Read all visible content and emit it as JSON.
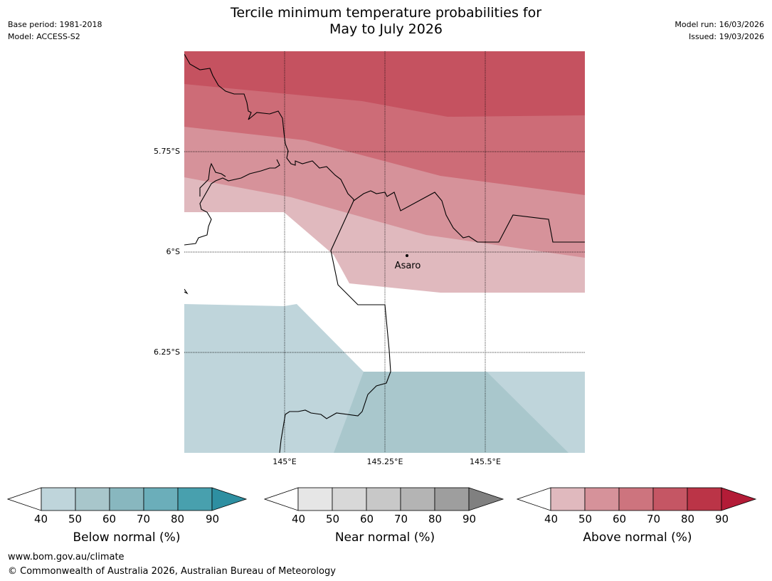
{
  "title": {
    "line1": "Tercile minimum temperature probabilities for",
    "line2": "May to July 2026"
  },
  "meta_left": {
    "base_period": "Base period: 1981-2018",
    "model": "Model: ACCESS-S2"
  },
  "meta_right": {
    "model_run": "Model run: 16/03/2026",
    "issued": "Issued: 19/03/2026"
  },
  "map": {
    "lat_labels": [
      "5.75°S",
      "6°S",
      "6.25°S"
    ],
    "lon_labels": [
      "145°E",
      "145.25°E",
      "145.5°E"
    ],
    "place": "Asaro",
    "colors": {
      "above_40": "#e0b9be",
      "above_50": "#d6929a",
      "above_60": "#cd6c77",
      "above_70": "#c55260",
      "below_40": "#bfd5db",
      "below_50": "#a9c7cc"
    }
  },
  "colorbars": [
    {
      "label": "Below normal (%)",
      "ticks": [
        "40",
        "50",
        "60",
        "70",
        "80",
        "90"
      ],
      "colors": [
        "#bfd5db",
        "#a8c6cb",
        "#88b7bf",
        "#6baeba",
        "#48a0ae",
        "#2e8fa1"
      ]
    },
    {
      "label": "Near normal (%)",
      "ticks": [
        "40",
        "50",
        "60",
        "70",
        "80",
        "90"
      ],
      "colors": [
        "#e6e6e6",
        "#d8d8d8",
        "#c8c8c8",
        "#b4b4b4",
        "#9e9e9e",
        "#808080"
      ]
    },
    {
      "label": "Above normal (%)",
      "ticks": [
        "40",
        "50",
        "60",
        "70",
        "80",
        "90"
      ],
      "colors": [
        "#e0b9be",
        "#d6929a",
        "#cd747e",
        "#c55664",
        "#bb3447",
        "#b31c37"
      ]
    }
  ],
  "footer": {
    "url": "www.bom.gov.au/climate",
    "copyright": "© Commonwealth of Australia 2026, Australian Bureau of Meteorology"
  }
}
